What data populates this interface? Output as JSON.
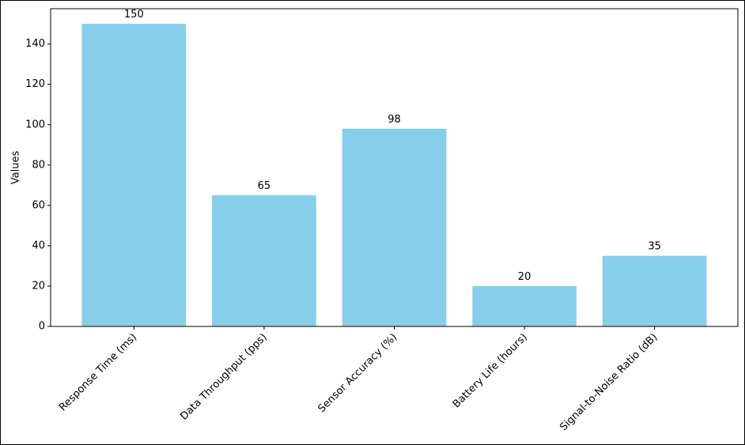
{
  "chart_data": {
    "type": "bar",
    "y_label": "Values",
    "categories": [
      "Response Time (ms)",
      "Data Throughput (pps)",
      "Sensor Accuracy (%)",
      "Battery Life (hours)",
      "Signal-to-Noise Ratio (dB)"
    ],
    "values": [
      150,
      65,
      98,
      20,
      35
    ],
    "color": "#87ceeb",
    "ylim": [
      0,
      157.5
    ],
    "yticks": [
      0,
      20,
      40,
      60,
      80,
      100,
      120,
      140
    ],
    "grid": false
  }
}
